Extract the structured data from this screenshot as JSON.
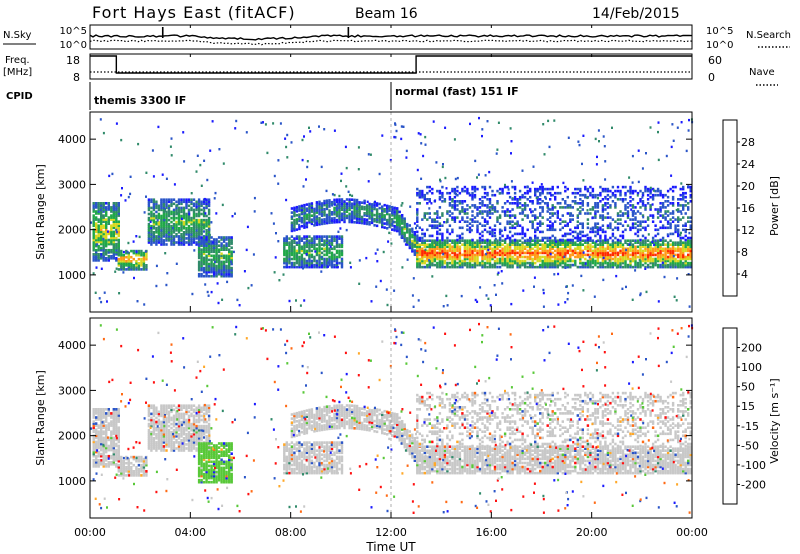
{
  "header": {
    "station": "Fort Hays East (fitACF)",
    "beam": "Beam 16",
    "date": "14/Feb/2015"
  },
  "noise_panel": {
    "left_label": "N.Sky",
    "left_ticks": [
      "10^5",
      "10^0"
    ],
    "right_ticks": [
      "10^5",
      "10^0"
    ],
    "right_label": "N.Search"
  },
  "freq_panel": {
    "left_label_1": "Freq.",
    "left_label_2": "[MHz]",
    "left_ticks": [
      "18",
      "8"
    ],
    "right_ticks": [
      "60",
      "0"
    ],
    "right_label": "Nave"
  },
  "cpid": {
    "label": "CPID",
    "modes": [
      {
        "text": "themis 3300 IF",
        "start_hour": 0
      },
      {
        "text": "normal (fast) 151 IF",
        "start_hour": 12
      }
    ]
  },
  "chart_data": [
    {
      "type": "heatmap",
      "name": "power",
      "ylabel": "Slant Range [km]",
      "yticks": [
        "4000",
        "3000",
        "2000",
        "1000"
      ],
      "ytick_values": [
        4000,
        3000,
        2000,
        1000
      ],
      "ylim": [
        180,
        4600
      ],
      "xlim": [
        0,
        24
      ],
      "colorbar_label": "Power [dB]",
      "colorbar_ticks": [
        "28",
        "24",
        "20",
        "16",
        "12",
        "8",
        "4"
      ],
      "colorbar_values": [
        28,
        24,
        20,
        16,
        12,
        8,
        4
      ],
      "colorbar_range": [
        0,
        32
      ],
      "colors": [
        "#1a1aff",
        "#2a55c8",
        "#308a6a",
        "#20a848",
        "#d8d820",
        "#ff9a18",
        "#ff2a00"
      ],
      "echo_bands": [
        {
          "t0": 0.1,
          "t1": 1.2,
          "r_low": 1350,
          "r_high": 2650,
          "peak_db": 20
        },
        {
          "t0": 1.1,
          "t1": 2.3,
          "r_low": 1150,
          "r_high": 1600,
          "peak_db": 24
        },
        {
          "t0": 2.3,
          "t1": 4.7,
          "r_low": 1700,
          "r_high": 2700,
          "peak_db": 16
        },
        {
          "t0": 4.3,
          "t1": 5.6,
          "r_low": 1000,
          "r_high": 1900,
          "peak_db": 16
        },
        {
          "t0": 7.7,
          "t1": 10.0,
          "r_low": 1200,
          "r_high": 1900,
          "peak_db": 16
        },
        {
          "t0": 8.0,
          "t1": 12.2,
          "r_low": 2000,
          "r_high": 2700,
          "peak_db": 12
        },
        {
          "t0": 12.2,
          "t1": 13.0,
          "r_low": 1800,
          "r_high": 2500,
          "peak_db": 16
        },
        {
          "t0": 13.0,
          "t1": 24.0,
          "r_low": 1200,
          "r_high": 1800,
          "peak_db": 28
        },
        {
          "t0": 13.0,
          "t1": 24.0,
          "r_low": 1800,
          "r_high": 3000,
          "peak_db": 8
        }
      ]
    },
    {
      "type": "heatmap",
      "name": "velocity",
      "ylabel": "Slant Range [km]",
      "yticks": [
        "4000",
        "3000",
        "2000",
        "1000"
      ],
      "ytick_values": [
        4000,
        3000,
        2000,
        1000
      ],
      "ylim": [
        180,
        4600
      ],
      "xlim": [
        0,
        24
      ],
      "colorbar_label": "Velocity [m s⁻¹]",
      "colorbar_ticks": [
        "200",
        "100",
        "50",
        "15",
        "-15",
        "-50",
        "-100",
        "-200"
      ],
      "colorbar_values": [
        200,
        100,
        50,
        15,
        -15,
        -50,
        -100,
        -200
      ],
      "colors": [
        "#1a1aff",
        "#2a55c8",
        "#308a6a",
        "#58c838",
        "#c8c8c8",
        "#ffa828",
        "#ff6a14",
        "#ff1010"
      ],
      "echo_bands": [
        {
          "t0": 0.1,
          "t1": 2.3,
          "r_low": 1200,
          "r_high": 2600,
          "velocity": 0
        },
        {
          "t0": 2.3,
          "t1": 4.7,
          "r_low": 1700,
          "r_high": 2700,
          "velocity": 0
        },
        {
          "t0": 4.4,
          "t1": 5.6,
          "r_low": 1100,
          "r_high": 2000,
          "velocity": 60
        },
        {
          "t0": 7.7,
          "t1": 10.0,
          "r_low": 1200,
          "r_high": 1900,
          "velocity": 0
        },
        {
          "t0": 8.0,
          "t1": 13.0,
          "r_low": 1800,
          "r_high": 2700,
          "velocity": 0
        },
        {
          "t0": 13.0,
          "t1": 24.0,
          "r_low": 1200,
          "r_high": 2100,
          "velocity": 0
        }
      ]
    }
  ],
  "x_axis": {
    "label": "Time UT",
    "ticks": [
      "00:00",
      "04:00",
      "08:00",
      "12:00",
      "16:00",
      "20:00",
      "00:00"
    ],
    "tick_hours": [
      0,
      4,
      8,
      12,
      16,
      20,
      24
    ]
  }
}
